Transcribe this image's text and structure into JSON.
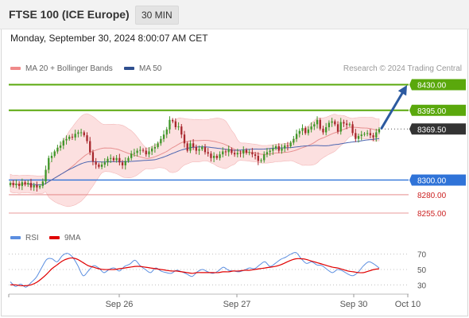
{
  "header": {
    "title": "FTSE 100 (ICE Europe)",
    "interval": "30 MIN"
  },
  "timestamp": "Monday, September 30, 2024 8:00:07 AM CET",
  "legend": {
    "ma20_label": "MA 20 + Bollinger Bands",
    "ma50_label": "MA 50",
    "rsi_label": "RSI",
    "rsi_ma_label": "9MA",
    "copyright": "Research © 2024 Trading Central"
  },
  "colors": {
    "bull": "#3f9628",
    "bear": "#a8272d",
    "resistance": "#5aa80c",
    "current": "#333333",
    "support": "#2f73d8",
    "minor_support": "#e07a7a",
    "minor_support_text": "#cc2222",
    "band_fill": "#fbd6d6",
    "ma20": "#e79090",
    "ma50": "#4d66b0",
    "rsi": "#5b8ee0",
    "rsi_ma": "#e00000",
    "arrow": "#2c5aa0"
  },
  "chart_data": [
    {
      "type": "candlestick",
      "title": "FTSE 100 (ICE Europe)",
      "timeframe": "30 MIN",
      "x_labels": [
        "Sep 26",
        "Sep 27",
        "Sep 30",
        "Oct 10"
      ],
      "ylim": [
        8242,
        8437
      ],
      "levels": [
        {
          "value": 8430.0,
          "label": "8430.00",
          "kind": "resistance"
        },
        {
          "value": 8395.0,
          "label": "8395.00",
          "kind": "resistance"
        },
        {
          "value": 8369.5,
          "label": "8369.50",
          "kind": "current"
        },
        {
          "value": 8300.0,
          "label": "8300.00",
          "kind": "support"
        },
        {
          "value": 8280.0,
          "label": "8280.00",
          "kind": "minor_support"
        },
        {
          "value": 8255.0,
          "label": "8255.00",
          "kind": "minor_support"
        }
      ],
      "close": [
        8296,
        8293,
        8295,
        8292,
        8297,
        8294,
        8296,
        8290,
        8293,
        8290,
        8292,
        8298,
        8314,
        8330,
        8333,
        8339,
        8344,
        8347,
        8354,
        8356,
        8359,
        8358,
        8363,
        8365,
        8365,
        8361,
        8353,
        8338,
        8325,
        8321,
        8318,
        8321,
        8324,
        8329,
        8330,
        8327,
        8330,
        8324,
        8320,
        8326,
        8330,
        8336,
        8337,
        8340,
        8341,
        8340,
        8335,
        8339,
        8343,
        8345,
        8350,
        8356,
        8362,
        8369,
        8382,
        8380,
        8372,
        8373,
        8362,
        8350,
        8340,
        8350,
        8345,
        8340,
        8342,
        8345,
        8338,
        8336,
        8330,
        8333,
        8330,
        8335,
        8339,
        8338,
        8342,
        8337,
        8335,
        8337,
        8336,
        8341,
        8337,
        8338,
        8335,
        8333,
        8326,
        8327,
        8335,
        8338,
        8340,
        8343,
        8346,
        8340,
        8343,
        8347,
        8346,
        8351,
        8356,
        8363,
        8367,
        8371,
        8364,
        8369,
        8373,
        8376,
        8382,
        8370,
        8365,
        8372,
        8378,
        8380,
        8376,
        8366,
        8379,
        8377,
        8375,
        8376,
        8364,
        8356,
        8360,
        8362,
        8363,
        8364,
        8361,
        8358,
        8365,
        8369.5
      ],
      "ma20_approx": [
        8312,
        8332,
        8346,
        8358,
        8343,
        8331,
        8334,
        8344,
        8356,
        8350,
        8343,
        8336,
        8335,
        8337,
        8351,
        8364,
        8369,
        8361,
        8366
      ],
      "ma50_approx": [
        8323,
        8319,
        8327,
        8337,
        8341,
        8339,
        8337,
        8340,
        8348,
        8355,
        8357,
        8360
      ]
    },
    {
      "type": "line",
      "title": "RSI",
      "ylim": [
        20,
        80
      ],
      "y_ticks": [
        70,
        50,
        30
      ],
      "series": [
        {
          "name": "RSI",
          "values": [
            34,
            28,
            31,
            27,
            33,
            40,
            52,
            63,
            64,
            60,
            68,
            71,
            66,
            55,
            42,
            48,
            55,
            52,
            46,
            50,
            52,
            48,
            54,
            57,
            62,
            55,
            50,
            46,
            52,
            48,
            46,
            45,
            49,
            47,
            44,
            41,
            47,
            50,
            47,
            45,
            48,
            53,
            49,
            48,
            47,
            49,
            52,
            51,
            56,
            60,
            54,
            58,
            63,
            66,
            70,
            72,
            64,
            58,
            60,
            56,
            55,
            50,
            46,
            50,
            48,
            44,
            42,
            47,
            55,
            60,
            57,
            52
          ]
        },
        {
          "name": "9MA",
          "values": [
            30,
            30,
            29,
            29,
            30,
            33,
            38,
            44,
            51,
            56,
            61,
            64,
            65,
            63,
            59,
            55,
            53,
            51,
            50,
            50,
            50,
            51,
            52,
            53,
            54,
            54,
            53,
            52,
            51,
            50,
            49,
            48,
            48,
            47,
            46,
            45,
            46,
            46,
            46,
            46,
            46,
            47,
            47,
            48,
            48,
            49,
            49,
            50,
            51,
            52,
            53,
            54,
            56,
            59,
            62,
            64,
            64,
            63,
            61,
            59,
            57,
            55,
            53,
            52,
            50,
            48,
            47,
            46,
            46,
            48,
            50,
            51
          ]
        }
      ]
    }
  ]
}
